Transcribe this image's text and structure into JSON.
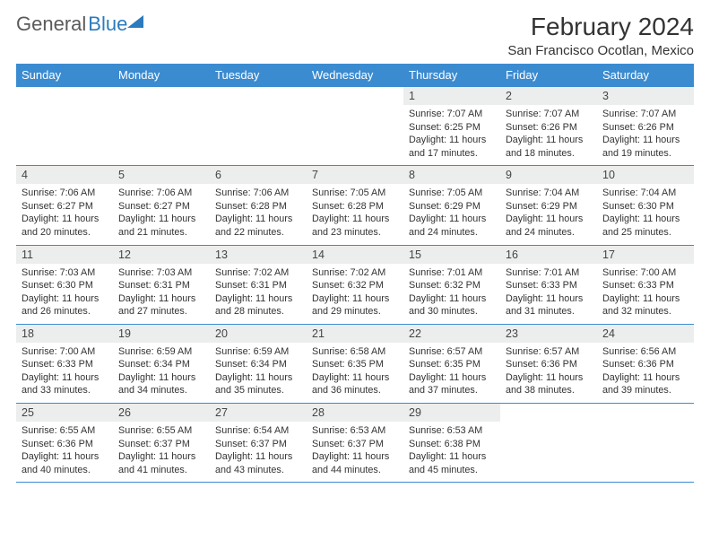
{
  "logo": {
    "text1": "General",
    "text2": "Blue"
  },
  "title": "February 2024",
  "location": "San Francisco Ocotlan, Mexico",
  "colors": {
    "header_bg": "#3b8bd0",
    "header_text": "#ffffff",
    "daynum_bg": "#eceded",
    "rule": "#3b8bd0",
    "logo_gray": "#5a5a5a",
    "logo_blue": "#2b7bbd"
  },
  "daysOfWeek": [
    "Sunday",
    "Monday",
    "Tuesday",
    "Wednesday",
    "Thursday",
    "Friday",
    "Saturday"
  ],
  "weeks": [
    [
      {
        "n": "",
        "sr": "",
        "ss": "",
        "dl": ""
      },
      {
        "n": "",
        "sr": "",
        "ss": "",
        "dl": ""
      },
      {
        "n": "",
        "sr": "",
        "ss": "",
        "dl": ""
      },
      {
        "n": "",
        "sr": "",
        "ss": "",
        "dl": ""
      },
      {
        "n": "1",
        "sr": "Sunrise: 7:07 AM",
        "ss": "Sunset: 6:25 PM",
        "dl": "Daylight: 11 hours and 17 minutes."
      },
      {
        "n": "2",
        "sr": "Sunrise: 7:07 AM",
        "ss": "Sunset: 6:26 PM",
        "dl": "Daylight: 11 hours and 18 minutes."
      },
      {
        "n": "3",
        "sr": "Sunrise: 7:07 AM",
        "ss": "Sunset: 6:26 PM",
        "dl": "Daylight: 11 hours and 19 minutes."
      }
    ],
    [
      {
        "n": "4",
        "sr": "Sunrise: 7:06 AM",
        "ss": "Sunset: 6:27 PM",
        "dl": "Daylight: 11 hours and 20 minutes."
      },
      {
        "n": "5",
        "sr": "Sunrise: 7:06 AM",
        "ss": "Sunset: 6:27 PM",
        "dl": "Daylight: 11 hours and 21 minutes."
      },
      {
        "n": "6",
        "sr": "Sunrise: 7:06 AM",
        "ss": "Sunset: 6:28 PM",
        "dl": "Daylight: 11 hours and 22 minutes."
      },
      {
        "n": "7",
        "sr": "Sunrise: 7:05 AM",
        "ss": "Sunset: 6:28 PM",
        "dl": "Daylight: 11 hours and 23 minutes."
      },
      {
        "n": "8",
        "sr": "Sunrise: 7:05 AM",
        "ss": "Sunset: 6:29 PM",
        "dl": "Daylight: 11 hours and 24 minutes."
      },
      {
        "n": "9",
        "sr": "Sunrise: 7:04 AM",
        "ss": "Sunset: 6:29 PM",
        "dl": "Daylight: 11 hours and 24 minutes."
      },
      {
        "n": "10",
        "sr": "Sunrise: 7:04 AM",
        "ss": "Sunset: 6:30 PM",
        "dl": "Daylight: 11 hours and 25 minutes."
      }
    ],
    [
      {
        "n": "11",
        "sr": "Sunrise: 7:03 AM",
        "ss": "Sunset: 6:30 PM",
        "dl": "Daylight: 11 hours and 26 minutes."
      },
      {
        "n": "12",
        "sr": "Sunrise: 7:03 AM",
        "ss": "Sunset: 6:31 PM",
        "dl": "Daylight: 11 hours and 27 minutes."
      },
      {
        "n": "13",
        "sr": "Sunrise: 7:02 AM",
        "ss": "Sunset: 6:31 PM",
        "dl": "Daylight: 11 hours and 28 minutes."
      },
      {
        "n": "14",
        "sr": "Sunrise: 7:02 AM",
        "ss": "Sunset: 6:32 PM",
        "dl": "Daylight: 11 hours and 29 minutes."
      },
      {
        "n": "15",
        "sr": "Sunrise: 7:01 AM",
        "ss": "Sunset: 6:32 PM",
        "dl": "Daylight: 11 hours and 30 minutes."
      },
      {
        "n": "16",
        "sr": "Sunrise: 7:01 AM",
        "ss": "Sunset: 6:33 PM",
        "dl": "Daylight: 11 hours and 31 minutes."
      },
      {
        "n": "17",
        "sr": "Sunrise: 7:00 AM",
        "ss": "Sunset: 6:33 PM",
        "dl": "Daylight: 11 hours and 32 minutes."
      }
    ],
    [
      {
        "n": "18",
        "sr": "Sunrise: 7:00 AM",
        "ss": "Sunset: 6:33 PM",
        "dl": "Daylight: 11 hours and 33 minutes."
      },
      {
        "n": "19",
        "sr": "Sunrise: 6:59 AM",
        "ss": "Sunset: 6:34 PM",
        "dl": "Daylight: 11 hours and 34 minutes."
      },
      {
        "n": "20",
        "sr": "Sunrise: 6:59 AM",
        "ss": "Sunset: 6:34 PM",
        "dl": "Daylight: 11 hours and 35 minutes."
      },
      {
        "n": "21",
        "sr": "Sunrise: 6:58 AM",
        "ss": "Sunset: 6:35 PM",
        "dl": "Daylight: 11 hours and 36 minutes."
      },
      {
        "n": "22",
        "sr": "Sunrise: 6:57 AM",
        "ss": "Sunset: 6:35 PM",
        "dl": "Daylight: 11 hours and 37 minutes."
      },
      {
        "n": "23",
        "sr": "Sunrise: 6:57 AM",
        "ss": "Sunset: 6:36 PM",
        "dl": "Daylight: 11 hours and 38 minutes."
      },
      {
        "n": "24",
        "sr": "Sunrise: 6:56 AM",
        "ss": "Sunset: 6:36 PM",
        "dl": "Daylight: 11 hours and 39 minutes."
      }
    ],
    [
      {
        "n": "25",
        "sr": "Sunrise: 6:55 AM",
        "ss": "Sunset: 6:36 PM",
        "dl": "Daylight: 11 hours and 40 minutes."
      },
      {
        "n": "26",
        "sr": "Sunrise: 6:55 AM",
        "ss": "Sunset: 6:37 PM",
        "dl": "Daylight: 11 hours and 41 minutes."
      },
      {
        "n": "27",
        "sr": "Sunrise: 6:54 AM",
        "ss": "Sunset: 6:37 PM",
        "dl": "Daylight: 11 hours and 43 minutes."
      },
      {
        "n": "28",
        "sr": "Sunrise: 6:53 AM",
        "ss": "Sunset: 6:37 PM",
        "dl": "Daylight: 11 hours and 44 minutes."
      },
      {
        "n": "29",
        "sr": "Sunrise: 6:53 AM",
        "ss": "Sunset: 6:38 PM",
        "dl": "Daylight: 11 hours and 45 minutes."
      },
      {
        "n": "",
        "sr": "",
        "ss": "",
        "dl": ""
      },
      {
        "n": "",
        "sr": "",
        "ss": "",
        "dl": ""
      }
    ]
  ]
}
